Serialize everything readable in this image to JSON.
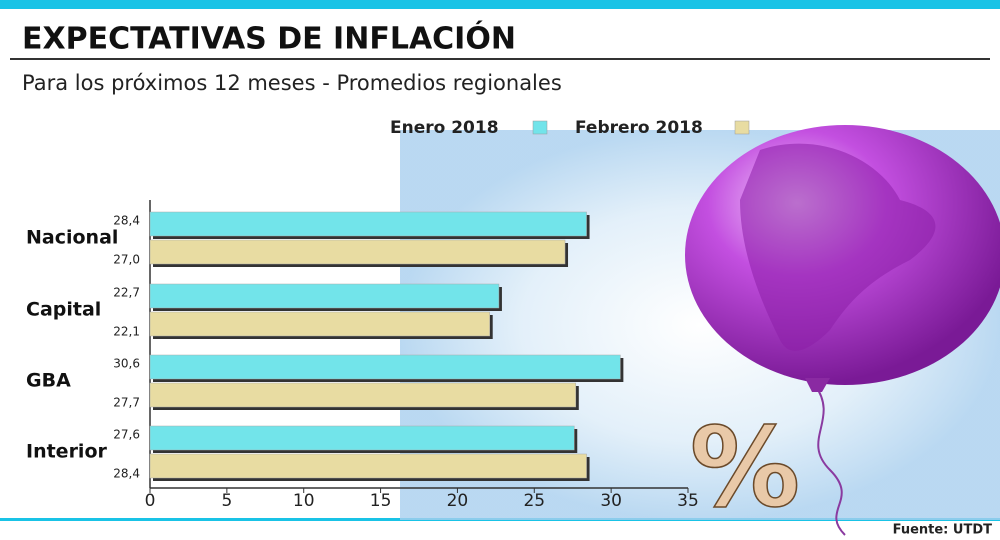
{
  "chart_data": {
    "type": "bar",
    "orientation": "horizontal",
    "title": "EXPECTATIVAS DE INFLACIÓN",
    "subtitle": "Para los próximos 12 meses - Promedios regionales",
    "categories": [
      "Nacional",
      "Capital",
      "GBA",
      "Interior"
    ],
    "series": [
      {
        "name": "Enero 2018",
        "color": "#72e4ea",
        "values": [
          28.4,
          22.7,
          30.6,
          27.6
        ],
        "value_labels": [
          "28,4",
          "22,7",
          "30,6",
          "27,6"
        ]
      },
      {
        "name": "Febrero 2018",
        "color": "#e8dca2",
        "values": [
          27.0,
          22.1,
          27.7,
          28.4
        ],
        "value_labels": [
          "27,0",
          "22,1",
          "27,7",
          "28,4"
        ]
      }
    ],
    "xlim": [
      0,
      35
    ],
    "xticks": [
      0,
      5,
      10,
      15,
      20,
      25,
      30,
      35
    ],
    "source": "Fuente: UTDT",
    "graphic_symbol": "%"
  }
}
